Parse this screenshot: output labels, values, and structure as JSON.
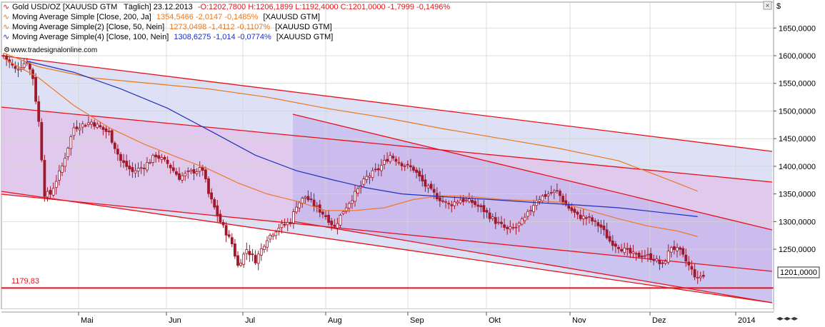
{
  "header": {
    "line1_symbol": "Gold USD/OZ [XAUUSD GTM",
    "line1_period": "Täglich] 23.12.2013",
    "line1_ohlc": "-O:1202,7800 H:1206,1899 L:1192,4000 C:1201,0000 -1,7999 -0,1496%",
    "ma1_label": "Moving Average Simple [Close, 200, Ja]",
    "ma1_values": "1354,5466 -2,0147 -0,1485%",
    "ma1_symbol": "[XAUUSD GTM]",
    "ma2_label": "Moving Average Simple(2) [Close, 50, Nein]",
    "ma2_values": "1273,0498 -1,4112 -0,1107%",
    "ma2_symbol": "[XAUUSD GTM]",
    "ma3_label": "Moving Average Simple(4) [Close, 100, Nein]",
    "ma3_values": "1308,6275 -1,014 -0,0774%",
    "ma3_symbol": "[XAUUSD GTM]",
    "watermark": "www.tradesignalonline.com"
  },
  "axis_currency": "$",
  "close_label": "1201,0000",
  "support_label": "1179,83",
  "colors": {
    "candle": "#a0182b",
    "channel_line": "#e8101a",
    "ma200": "#e87820",
    "ma50": "#f07828",
    "ma100": "#2030c0",
    "outer_fill": "#d8dcf4",
    "mid_fill": "#e2c4ec",
    "inner_fill": "#c0b4ec",
    "header_red": "#e01818",
    "header_orange": "#e87820",
    "header_blue": "#2030c0"
  },
  "chart_data": {
    "type": "candlestick",
    "symbol": "Gold USD/OZ",
    "last_close": 1201.0,
    "support_level": 1179.83,
    "ylim": [
      1130,
      1680
    ],
    "y_ticks": [
      "1650,0000",
      "1600,0000",
      "1550,0000",
      "1500,0000",
      "1450,0000",
      "1400,0000",
      "1350,0000",
      "1300,0000",
      "1250,0000"
    ],
    "x_ticks": [
      "Mai",
      "Jun",
      "Jul",
      "Aug",
      "Sep",
      "Okt",
      "Nov",
      "Dez",
      "2014"
    ],
    "anchors": [
      [
        0,
        1600
      ],
      [
        4,
        1575
      ],
      [
        8,
        1590
      ],
      [
        10,
        1560
      ],
      [
        12,
        1480
      ],
      [
        14,
        1350
      ],
      [
        16,
        1350
      ],
      [
        20,
        1400
      ],
      [
        24,
        1470
      ],
      [
        30,
        1480
      ],
      [
        36,
        1460
      ],
      [
        40,
        1410
      ],
      [
        44,
        1390
      ],
      [
        48,
        1400
      ],
      [
        52,
        1420
      ],
      [
        56,
        1405
      ],
      [
        60,
        1380
      ],
      [
        64,
        1390
      ],
      [
        68,
        1395
      ],
      [
        70,
        1350
      ],
      [
        74,
        1300
      ],
      [
        78,
        1260
      ],
      [
        80,
        1220
      ],
      [
        83,
        1250
      ],
      [
        86,
        1230
      ],
      [
        90,
        1270
      ],
      [
        94,
        1290
      ],
      [
        98,
        1300
      ],
      [
        100,
        1330
      ],
      [
        103,
        1345
      ],
      [
        106,
        1330
      ],
      [
        110,
        1310
      ],
      [
        113,
        1290
      ],
      [
        116,
        1320
      ],
      [
        120,
        1350
      ],
      [
        124,
        1380
      ],
      [
        128,
        1395
      ],
      [
        132,
        1420
      ],
      [
        136,
        1405
      ],
      [
        140,
        1395
      ],
      [
        144,
        1365
      ],
      [
        148,
        1345
      ],
      [
        152,
        1330
      ],
      [
        156,
        1340
      ],
      [
        160,
        1335
      ],
      [
        164,
        1320
      ],
      [
        168,
        1300
      ],
      [
        172,
        1285
      ],
      [
        175,
        1290
      ],
      [
        178,
        1305
      ],
      [
        182,
        1340
      ],
      [
        186,
        1350
      ],
      [
        189,
        1355
      ],
      [
        192,
        1330
      ],
      [
        196,
        1310
      ],
      [
        200,
        1305
      ],
      [
        204,
        1290
      ],
      [
        207,
        1265
      ],
      [
        210,
        1255
      ],
      [
        213,
        1245
      ],
      [
        216,
        1238
      ],
      [
        219,
        1240
      ],
      [
        222,
        1233
      ],
      [
        225,
        1220
      ],
      [
        228,
        1255
      ],
      [
        231,
        1245
      ],
      [
        234,
        1220
      ],
      [
        237,
        1195
      ]
    ],
    "ma200": [
      [
        0,
        1605
      ],
      [
        12,
        1580
      ],
      [
        30,
        1560
      ],
      [
        50,
        1550
      ],
      [
        70,
        1540
      ],
      [
        90,
        1525
      ],
      [
        110,
        1505
      ],
      [
        130,
        1488
      ],
      [
        150,
        1468
      ],
      [
        170,
        1450
      ],
      [
        190,
        1432
      ],
      [
        210,
        1410
      ],
      [
        225,
        1380
      ],
      [
        237,
        1355
      ]
    ],
    "ma50": [
      [
        0,
        1595
      ],
      [
        12,
        1560
      ],
      [
        24,
        1510
      ],
      [
        36,
        1470
      ],
      [
        48,
        1440
      ],
      [
        60,
        1415
      ],
      [
        70,
        1395
      ],
      [
        80,
        1370
      ],
      [
        90,
        1350
      ],
      [
        100,
        1337
      ],
      [
        110,
        1320
      ],
      [
        120,
        1320
      ],
      [
        130,
        1325
      ],
      [
        140,
        1340
      ],
      [
        150,
        1347
      ],
      [
        160,
        1345
      ],
      [
        170,
        1340
      ],
      [
        180,
        1338
      ],
      [
        190,
        1335
      ],
      [
        200,
        1320
      ],
      [
        210,
        1305
      ],
      [
        220,
        1292
      ],
      [
        230,
        1283
      ],
      [
        237,
        1273
      ]
    ],
    "ma100": [
      [
        8,
        1590
      ],
      [
        24,
        1570
      ],
      [
        40,
        1540
      ],
      [
        56,
        1505
      ],
      [
        72,
        1460
      ],
      [
        86,
        1420
      ],
      [
        100,
        1392
      ],
      [
        112,
        1376
      ],
      [
        124,
        1361
      ],
      [
        136,
        1350
      ],
      [
        150,
        1345
      ],
      [
        166,
        1340
      ],
      [
        180,
        1335
      ],
      [
        196,
        1330
      ],
      [
        210,
        1325
      ],
      [
        222,
        1318
      ],
      [
        237,
        1309
      ]
    ]
  }
}
